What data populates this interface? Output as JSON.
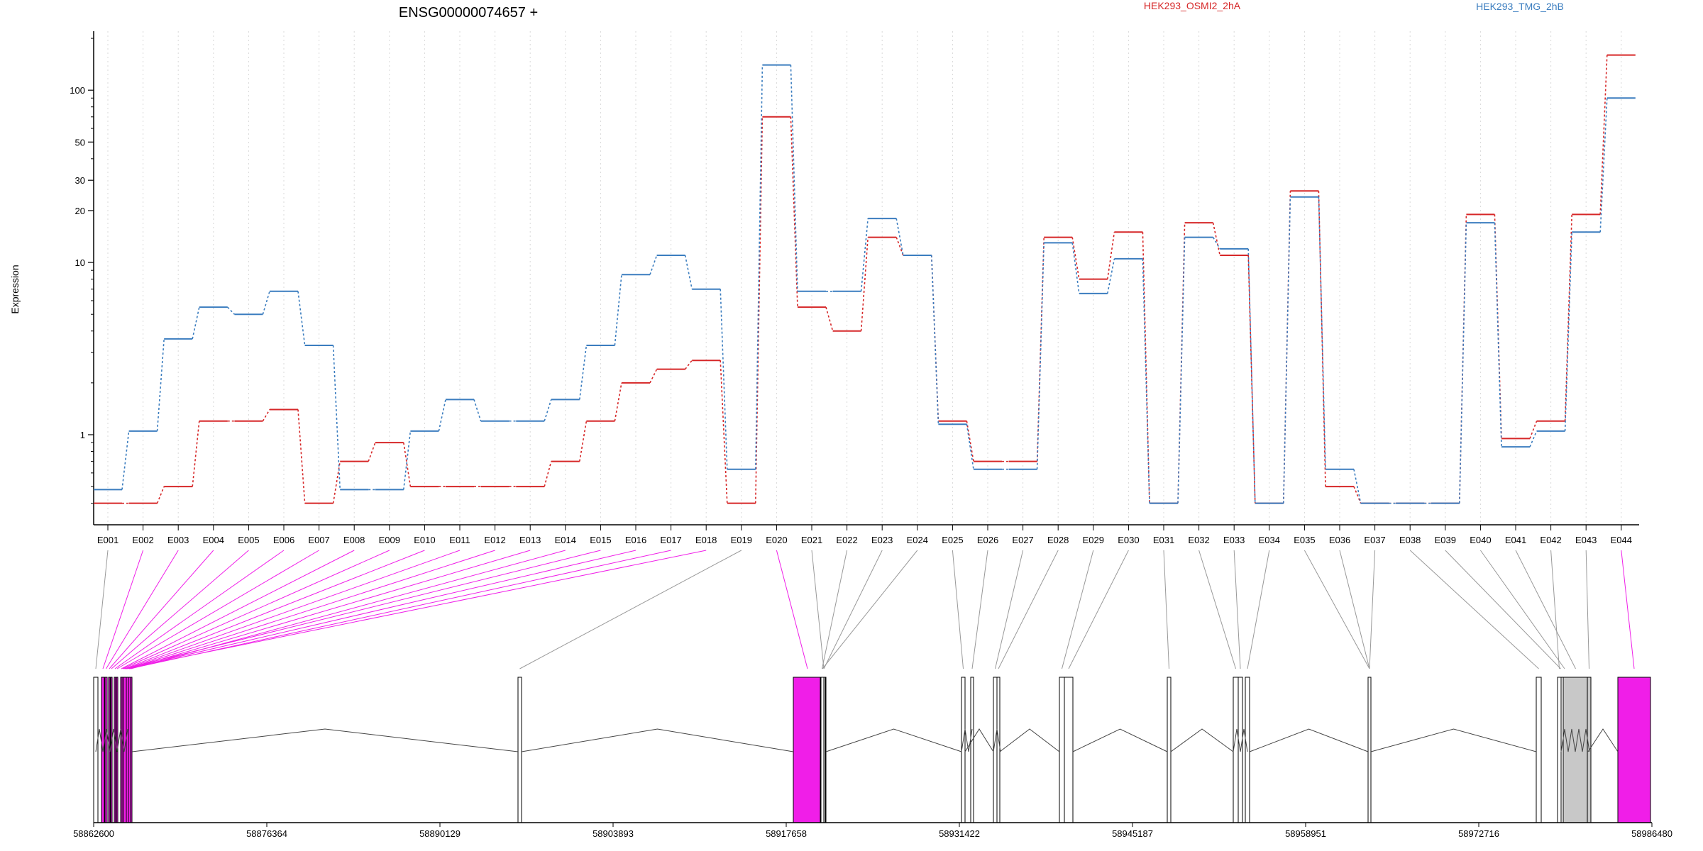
{
  "chart_data": {
    "type": "line",
    "title": "ENSG00000074657 +",
    "ylabel": "Expression",
    "xlabel": "",
    "yscale": "log",
    "ylim": [
      0.3,
      220
    ],
    "yticks": [
      1,
      10,
      20,
      30,
      50,
      100
    ],
    "grid": "vertical dotted lines at exon positions",
    "legend": "top-right",
    "categories": [
      "E001",
      "E002",
      "E003",
      "E004",
      "E005",
      "E006",
      "E007",
      "E008",
      "E009",
      "E010",
      "E011",
      "E012",
      "E013",
      "E014",
      "E015",
      "E016",
      "E017",
      "E018",
      "E019",
      "E020",
      "E021",
      "E022",
      "E023",
      "E024",
      "E025",
      "E026",
      "E027",
      "E028",
      "E029",
      "E030",
      "E031",
      "E032",
      "E033",
      "E034",
      "E035",
      "E036",
      "E037",
      "E038",
      "E039",
      "E040",
      "E041",
      "E042",
      "E043",
      "E044"
    ],
    "series": [
      {
        "name": "HEK293_OSMI2_2hA",
        "color": "#d62728",
        "values": [
          0.4,
          0.4,
          0.5,
          1.2,
          1.2,
          1.4,
          0.4,
          0.7,
          0.9,
          0.5,
          0.5,
          0.5,
          0.5,
          0.7,
          1.2,
          2.0,
          2.4,
          2.7,
          0.4,
          70,
          5.5,
          4.0,
          14,
          11,
          1.2,
          0.7,
          0.7,
          14,
          8,
          15,
          0.4,
          17,
          11,
          0.4,
          26,
          0.5,
          0.4,
          0.4,
          0.4,
          19,
          0.95,
          1.2,
          19,
          160
        ]
      },
      {
        "name": "HEK293_TMG_2hB",
        "color": "#3b7dbf",
        "values": [
          0.48,
          1.05,
          3.6,
          5.5,
          5.0,
          6.8,
          3.3,
          0.48,
          0.48,
          1.05,
          1.6,
          1.2,
          1.2,
          1.6,
          3.3,
          8.5,
          11,
          7,
          0.63,
          140,
          6.8,
          6.8,
          18,
          11,
          1.15,
          0.63,
          0.63,
          13,
          6.6,
          10.5,
          0.4,
          14,
          12,
          0.4,
          24,
          0.63,
          0.4,
          0.4,
          0.4,
          17,
          0.85,
          1.05,
          15,
          90
        ]
      }
    ],
    "genome_axis": {
      "ticks": [
        "58862600",
        "58876364",
        "58890129",
        "58903893",
        "58917658",
        "58931422",
        "58945187",
        "58958951",
        "58972716",
        "58986480"
      ],
      "start": 58862600,
      "end": 58986480
    },
    "highlighted_exons": [
      "E002",
      "E003",
      "E004",
      "E005",
      "E006",
      "E007",
      "E008",
      "E009",
      "E010",
      "E011",
      "E012",
      "E013",
      "E014",
      "E015",
      "E016",
      "E017",
      "E018",
      "E020",
      "E044"
    ],
    "colors": {
      "highlight": "#f01ee8",
      "shaded": "#c8c8c8",
      "connector": "#999999",
      "intron": "#444444"
    }
  }
}
